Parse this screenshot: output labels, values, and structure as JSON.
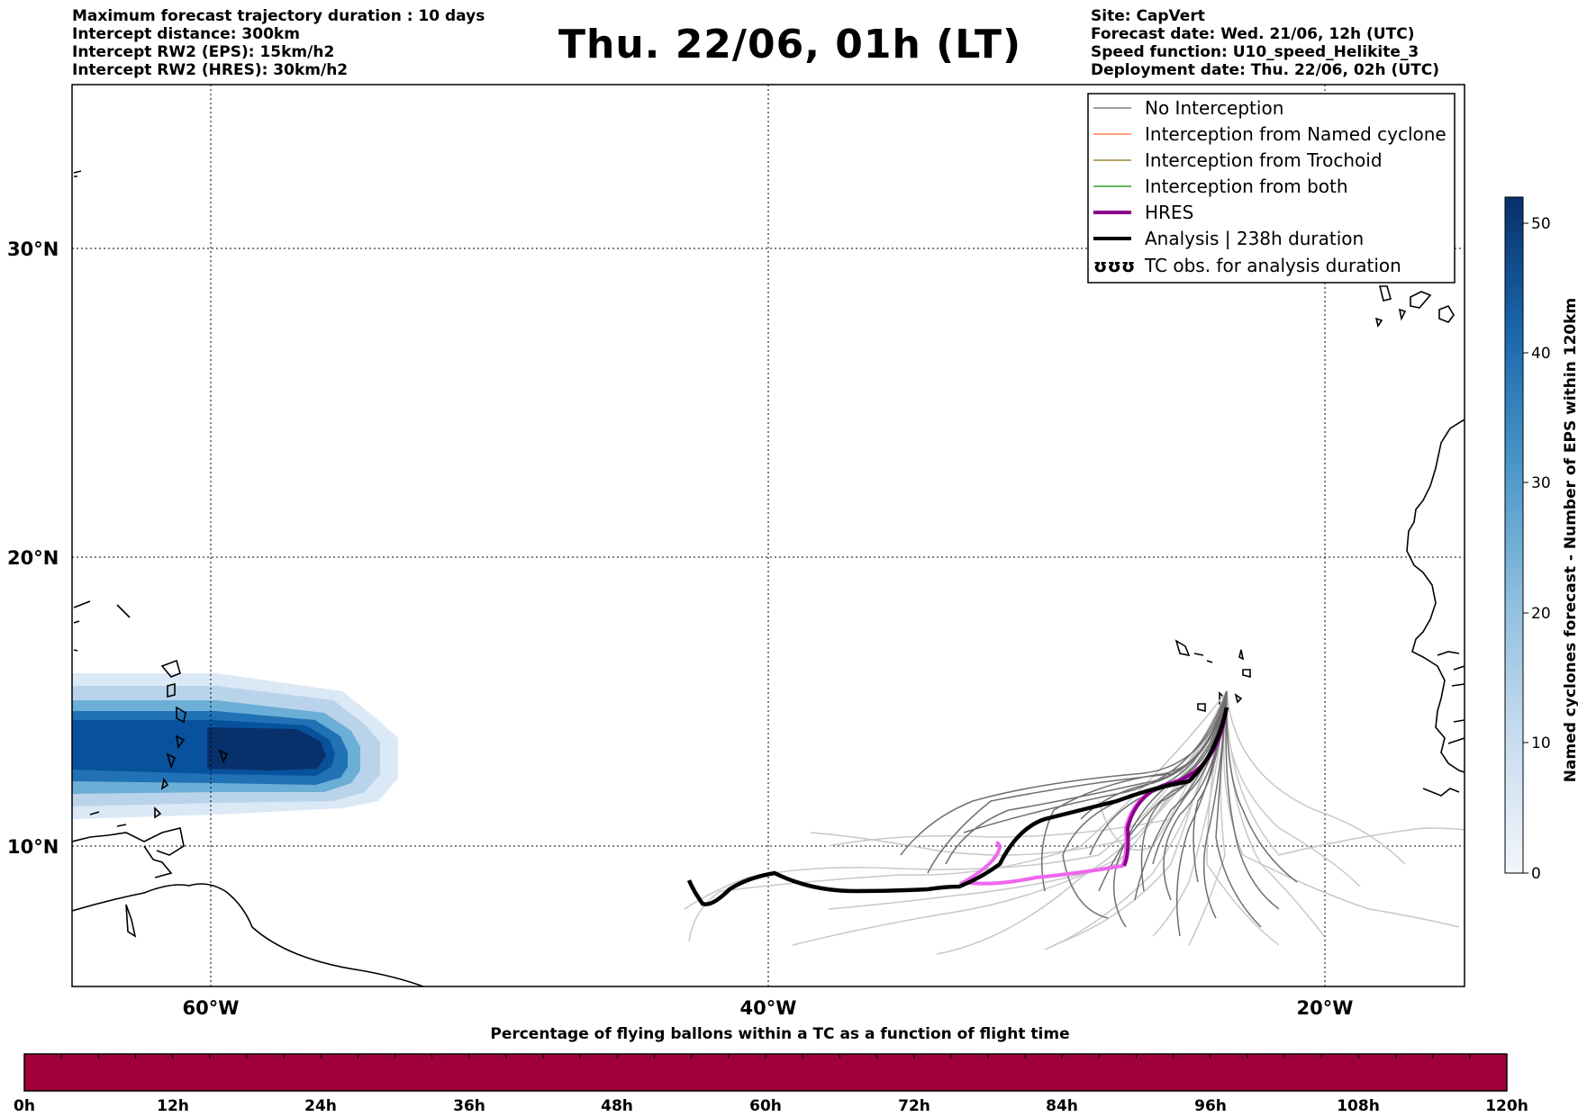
{
  "header_left": [
    "Maximum forecast trajectory duration : 10 days",
    "Intercept distance: 300km",
    "Intercept RW2 (EPS):  15km/h2",
    "Intercept RW2 (HRES): 30km/h2"
  ],
  "title": "Thu. 22/06, 01h (LT)",
  "header_right": [
    "Site: CapVert",
    "Forecast date: Wed. 21/06, 12h (UTC)",
    "Speed function: U10_speed_Helikite_3",
    "Deployment date: Thu. 22/06, 02h (UTC)"
  ],
  "map": {
    "lat_labels": [
      "30°N",
      "20°N",
      "10°N"
    ],
    "lon_labels": [
      "60°W",
      "40°W",
      "20°W"
    ]
  },
  "legend": {
    "items": [
      {
        "label": "No Interception",
        "color": "#808080"
      },
      {
        "label": "Interception from Named cyclone",
        "color": "#ff7f50"
      },
      {
        "label": "Interception from Trochoid",
        "color": "#9a8c3a"
      },
      {
        "label": "Interception from both",
        "color": "#2ca02c"
      },
      {
        "label": "HRES",
        "color": "#8b008b"
      },
      {
        "label": "Analysis | 238h duration",
        "color": "#000000"
      },
      {
        "label": "TC obs. for analysis duration",
        "symbol": "ʊʊʊ"
      }
    ]
  },
  "colorbar": {
    "label": "Named cyclones forecast - Number of EPS within 120km",
    "ticks": [
      "0",
      "10",
      "20",
      "30",
      "40",
      "50"
    ],
    "min": 0,
    "max": 52
  },
  "timebar": {
    "title": "Percentage of flying ballons within a TC as a function of flight time",
    "ticks": [
      "0h",
      "12h",
      "24h",
      "36h",
      "48h",
      "60h",
      "72h",
      "84h",
      "96h",
      "108h",
      "120h"
    ],
    "color": "#a0003c"
  }
}
